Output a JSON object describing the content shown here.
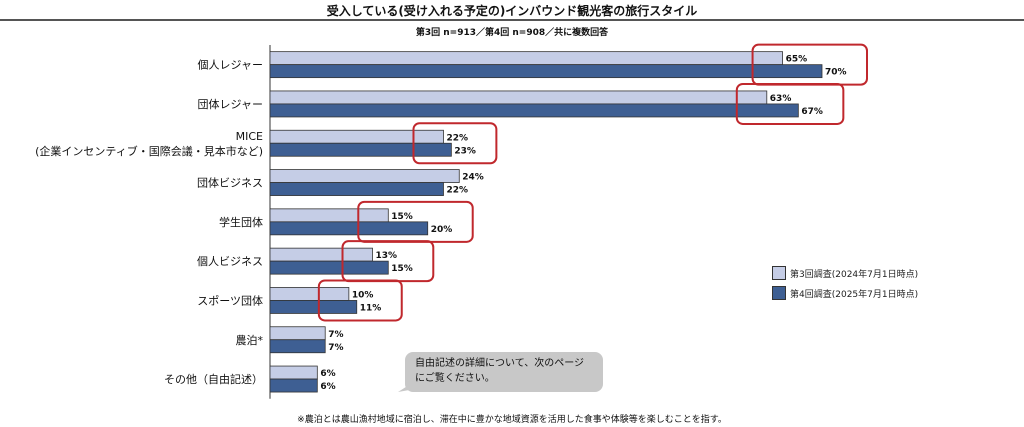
{
  "chart_data": {
    "type": "bar",
    "orientation": "horizontal",
    "title": "受入している(受け入れる予定の)インバウンド観光客の旅行スタイル",
    "subtitle": "第3回 n=913／第4回 n=908／共に複数回答",
    "categories": [
      "個人レジャー",
      "団体レジャー",
      "MICE\n(企業インセンティブ・国際会議・見本市など)",
      "団体ビジネス",
      "学生団体",
      "個人ビジネス",
      "スポーツ団体",
      "農泊*",
      "その他（自由記述）"
    ],
    "series": [
      {
        "name": "第3回調査(2024年7月1日時点)",
        "color": "#c5cde6",
        "values": [
          65,
          63,
          22,
          24,
          15,
          13,
          10,
          7,
          6
        ]
      },
      {
        "name": "第4回調査(2025年7月1日時点)",
        "color": "#3e5f93",
        "values": [
          70,
          67,
          23,
          22,
          20,
          15,
          11,
          7,
          6
        ]
      }
    ],
    "highlighted_categories": [
      0,
      1,
      2,
      4,
      5,
      6
    ],
    "value_suffix": "%",
    "xlim": [
      0,
      70
    ],
    "legend_position": "right"
  },
  "callout": "自由記述の詳細について、次のページにご覧ください。",
  "footnote": "※農泊とは農山漁村地域に宿泊し、滞在中に豊かな地域資源を活用した食事や体験等を楽しむことを指す。"
}
